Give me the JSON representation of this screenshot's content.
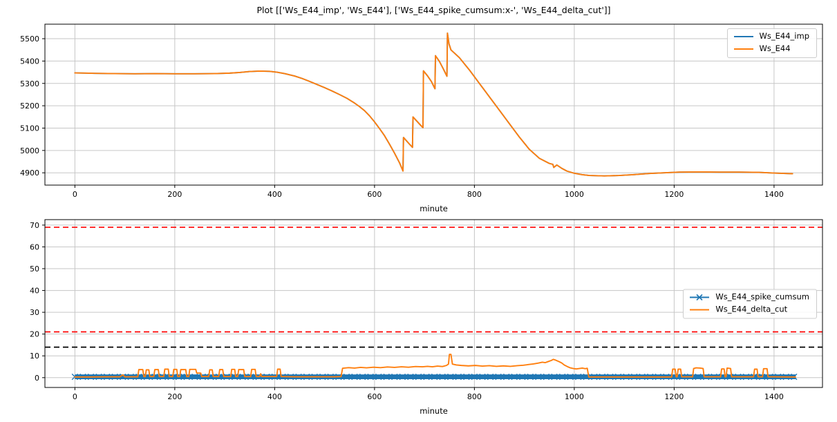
{
  "figure": {
    "title": "Plot [['Ws_E44_imp', 'Ws_E44'], ['Ws_E44_spike_cumsum:x-', 'Ws_E44_delta_cut']]"
  },
  "colors": {
    "blue": "#1f77b4",
    "orange": "#ff7f0e",
    "red": "#ff0000",
    "black": "#000000",
    "grid": "#c6c6c6",
    "spine": "#000000"
  },
  "chart_data": [
    {
      "type": "line",
      "title": "",
      "xlabel": "minute",
      "ylabel": "",
      "xlim": [
        -60,
        1497
      ],
      "ylim": [
        4845,
        5565
      ],
      "xticks": [
        0,
        200,
        400,
        600,
        800,
        1000,
        1200,
        1400
      ],
      "yticks": [
        4900,
        5000,
        5100,
        5200,
        5300,
        5400,
        5500
      ],
      "grid": true,
      "legend_position": "upper right",
      "hlines": [],
      "series": [
        {
          "name": "Ws_E44_imp",
          "color": "#1f77b4",
          "marker": null,
          "note": "coincides with Ws_E44 (hidden underneath)",
          "points_ref": "Ws_E44"
        },
        {
          "name": "Ws_E44",
          "color": "#ff7f0e",
          "marker": null,
          "points": [
            [
              0,
              5347
            ],
            [
              40,
              5345
            ],
            [
              80,
              5344
            ],
            [
              120,
              5343
            ],
            [
              160,
              5344
            ],
            [
              200,
              5343
            ],
            [
              240,
              5343
            ],
            [
              280,
              5344
            ],
            [
              310,
              5346
            ],
            [
              330,
              5349
            ],
            [
              350,
              5353
            ],
            [
              370,
              5355
            ],
            [
              390,
              5354
            ],
            [
              405,
              5350
            ],
            [
              420,
              5344
            ],
            [
              440,
              5333
            ],
            [
              455,
              5322
            ],
            [
              470,
              5309
            ],
            [
              485,
              5295
            ],
            [
              500,
              5281
            ],
            [
              515,
              5266
            ],
            [
              530,
              5250
            ],
            [
              545,
              5233
            ],
            [
              560,
              5212
            ],
            [
              570,
              5196
            ],
            [
              580,
              5178
            ],
            [
              590,
              5155
            ],
            [
              600,
              5128
            ],
            [
              610,
              5098
            ],
            [
              620,
              5066
            ],
            [
              630,
              5028
            ],
            [
              640,
              4988
            ],
            [
              650,
              4945
            ],
            [
              657,
              4908
            ],
            [
              658,
              5058
            ],
            [
              664,
              5043
            ],
            [
              670,
              5028
            ],
            [
              676,
              5014
            ],
            [
              677,
              5150
            ],
            [
              684,
              5133
            ],
            [
              691,
              5116
            ],
            [
              697,
              5102
            ],
            [
              698,
              5356
            ],
            [
              706,
              5334
            ],
            [
              714,
              5308
            ],
            [
              721,
              5276
            ],
            [
              722,
              5424
            ],
            [
              730,
              5398
            ],
            [
              738,
              5364
            ],
            [
              745,
              5332
            ],
            [
              746,
              5525
            ],
            [
              749,
              5478
            ],
            [
              753,
              5450
            ],
            [
              770,
              5415
            ],
            [
              790,
              5360
            ],
            [
              810,
              5300
            ],
            [
              830,
              5240
            ],
            [
              850,
              5180
            ],
            [
              870,
              5120
            ],
            [
              890,
              5060
            ],
            [
              910,
              5005
            ],
            [
              930,
              4965
            ],
            [
              950,
              4942
            ],
            [
              957,
              4938
            ],
            [
              959,
              4924
            ],
            [
              965,
              4935
            ],
            [
              975,
              4920
            ],
            [
              985,
              4908
            ],
            [
              1000,
              4898
            ],
            [
              1015,
              4892
            ],
            [
              1030,
              4888
            ],
            [
              1060,
              4886
            ],
            [
              1090,
              4888
            ],
            [
              1120,
              4892
            ],
            [
              1150,
              4897
            ],
            [
              1180,
              4900
            ],
            [
              1210,
              4903
            ],
            [
              1250,
              4904
            ],
            [
              1290,
              4903
            ],
            [
              1330,
              4903
            ],
            [
              1370,
              4902
            ],
            [
              1400,
              4899
            ],
            [
              1437,
              4896
            ]
          ]
        }
      ]
    },
    {
      "type": "line",
      "title": "",
      "xlabel": "minute",
      "ylabel": "",
      "xlim": [
        -60,
        1497
      ],
      "ylim": [
        -4.5,
        72.5
      ],
      "xticks": [
        0,
        200,
        400,
        600,
        800,
        1000,
        1200,
        1400
      ],
      "yticks": [
        0,
        10,
        20,
        30,
        40,
        50,
        60,
        70
      ],
      "grid": true,
      "legend_position": "center right",
      "hlines": [
        {
          "y": 69,
          "color": "#ff0000",
          "style": "dashed"
        },
        {
          "y": 21,
          "color": "#ff0000",
          "style": "dashed"
        },
        {
          "y": 14,
          "color": "#000000",
          "style": "dashed"
        }
      ],
      "series": [
        {
          "name": "Ws_E44_spike_cumsum",
          "color": "#1f77b4",
          "marker": "x",
          "band_half_width": 1.1,
          "marker_step": 16,
          "points": [
            [
              0,
              0.4
            ],
            [
              1443,
              0.4
            ]
          ]
        },
        {
          "name": "Ws_E44_delta_cut",
          "color": "#ff7f0e",
          "marker": null,
          "points": [
            [
              0,
              0.3
            ],
            [
              30,
              0.3
            ],
            [
              60,
              0.4
            ],
            [
              90,
              0.4
            ],
            [
              96,
              1.3
            ],
            [
              100,
              0.4
            ],
            [
              126,
              0.4
            ],
            [
              128,
              3.7
            ],
            [
              136,
              3.7
            ],
            [
              138,
              0.5
            ],
            [
              141,
              0.5
            ],
            [
              143,
              3.6
            ],
            [
              148,
              3.6
            ],
            [
              150,
              0.5
            ],
            [
              158,
              0.5
            ],
            [
              160,
              3.7
            ],
            [
              167,
              3.7
            ],
            [
              169,
              0.5
            ],
            [
              178,
              0.5
            ],
            [
              180,
              3.9
            ],
            [
              187,
              3.9
            ],
            [
              189,
              0.5
            ],
            [
              196,
              0.5
            ],
            [
              198,
              3.8
            ],
            [
              204,
              3.8
            ],
            [
              206,
              0.5
            ],
            [
              210,
              0.5
            ],
            [
              212,
              3.7
            ],
            [
              222,
              3.7
            ],
            [
              224,
              0.5
            ],
            [
              228,
              0.5
            ],
            [
              230,
              3.8
            ],
            [
              242,
              3.8
            ],
            [
              244,
              2.1
            ],
            [
              252,
              2.1
            ],
            [
              254,
              0.5
            ],
            [
              268,
              0.5
            ],
            [
              270,
              3.6
            ],
            [
              275,
              3.6
            ],
            [
              277,
              0.5
            ],
            [
              288,
              0.5
            ],
            [
              290,
              3.7
            ],
            [
              296,
              3.7
            ],
            [
              298,
              0.5
            ],
            [
              312,
              0.5
            ],
            [
              314,
              3.8
            ],
            [
              320,
              3.8
            ],
            [
              322,
              0.5
            ],
            [
              326,
              0.5
            ],
            [
              328,
              3.7
            ],
            [
              338,
              3.7
            ],
            [
              340,
              0.5
            ],
            [
              352,
              0.5
            ],
            [
              354,
              3.8
            ],
            [
              361,
              3.8
            ],
            [
              363,
              0.5
            ],
            [
              370,
              0.5
            ],
            [
              372,
              1.8
            ],
            [
              374,
              0.5
            ],
            [
              404,
              0.5
            ],
            [
              406,
              3.9
            ],
            [
              411,
              3.9
            ],
            [
              413,
              0.5
            ],
            [
              440,
              0.4
            ],
            [
              480,
              0.4
            ],
            [
              520,
              0.4
            ],
            [
              533,
              0.5
            ],
            [
              536,
              4.3
            ],
            [
              548,
              4.6
            ],
            [
              560,
              4.4
            ],
            [
              572,
              4.7
            ],
            [
              584,
              4.5
            ],
            [
              598,
              4.8
            ],
            [
              612,
              4.6
            ],
            [
              626,
              4.9
            ],
            [
              640,
              4.7
            ],
            [
              654,
              5.0
            ],
            [
              668,
              4.8
            ],
            [
              682,
              5.1
            ],
            [
              696,
              5.0
            ],
            [
              706,
              5.2
            ],
            [
              716,
              5.0
            ],
            [
              726,
              5.3
            ],
            [
              736,
              5.1
            ],
            [
              744,
              5.6
            ],
            [
              748,
              6.2
            ],
            [
              750,
              10.7
            ],
            [
              753,
              10.7
            ],
            [
              756,
              6.2
            ],
            [
              764,
              5.8
            ],
            [
              774,
              5.6
            ],
            [
              788,
              5.4
            ],
            [
              802,
              5.6
            ],
            [
              816,
              5.3
            ],
            [
              830,
              5.5
            ],
            [
              844,
              5.2
            ],
            [
              858,
              5.4
            ],
            [
              872,
              5.2
            ],
            [
              886,
              5.5
            ],
            [
              898,
              5.7
            ],
            [
              908,
              6.0
            ],
            [
              918,
              6.3
            ],
            [
              928,
              6.7
            ],
            [
              936,
              7.1
            ],
            [
              942,
              6.9
            ],
            [
              948,
              7.4
            ],
            [
              954,
              7.9
            ],
            [
              958,
              8.4
            ],
            [
              962,
              8.1
            ],
            [
              966,
              7.7
            ],
            [
              970,
              7.3
            ],
            [
              975,
              6.7
            ],
            [
              980,
              5.8
            ],
            [
              986,
              5.1
            ],
            [
              992,
              4.5
            ],
            [
              998,
              4.2
            ],
            [
              1004,
              4.0
            ],
            [
              1010,
              4.2
            ],
            [
              1016,
              4.4
            ],
            [
              1022,
              4.1
            ],
            [
              1026,
              4.3
            ],
            [
              1029,
              0.3
            ],
            [
              1060,
              0.3
            ],
            [
              1100,
              0.3
            ],
            [
              1140,
              0.3
            ],
            [
              1180,
              0.3
            ],
            [
              1195,
              0.3
            ],
            [
              1197,
              3.9
            ],
            [
              1202,
              3.9
            ],
            [
              1204,
              0.4
            ],
            [
              1206,
              0.4
            ],
            [
              1208,
              3.9
            ],
            [
              1213,
              3.9
            ],
            [
              1215,
              0.4
            ],
            [
              1237,
              0.4
            ],
            [
              1239,
              4.2
            ],
            [
              1244,
              4.5
            ],
            [
              1252,
              4.4
            ],
            [
              1258,
              4.2
            ],
            [
              1260,
              0.4
            ],
            [
              1293,
              0.4
            ],
            [
              1295,
              4.0
            ],
            [
              1300,
              4.0
            ],
            [
              1302,
              0.4
            ],
            [
              1304,
              0.4
            ],
            [
              1306,
              4.4
            ],
            [
              1313,
              4.2
            ],
            [
              1315,
              0.4
            ],
            [
              1359,
              0.4
            ],
            [
              1361,
              3.9
            ],
            [
              1366,
              3.9
            ],
            [
              1368,
              0.4
            ],
            [
              1377,
              0.4
            ],
            [
              1379,
              4.1
            ],
            [
              1386,
              4.1
            ],
            [
              1388,
              0.4
            ],
            [
              1400,
              0.4
            ],
            [
              1443,
              0.3
            ]
          ]
        }
      ]
    }
  ]
}
